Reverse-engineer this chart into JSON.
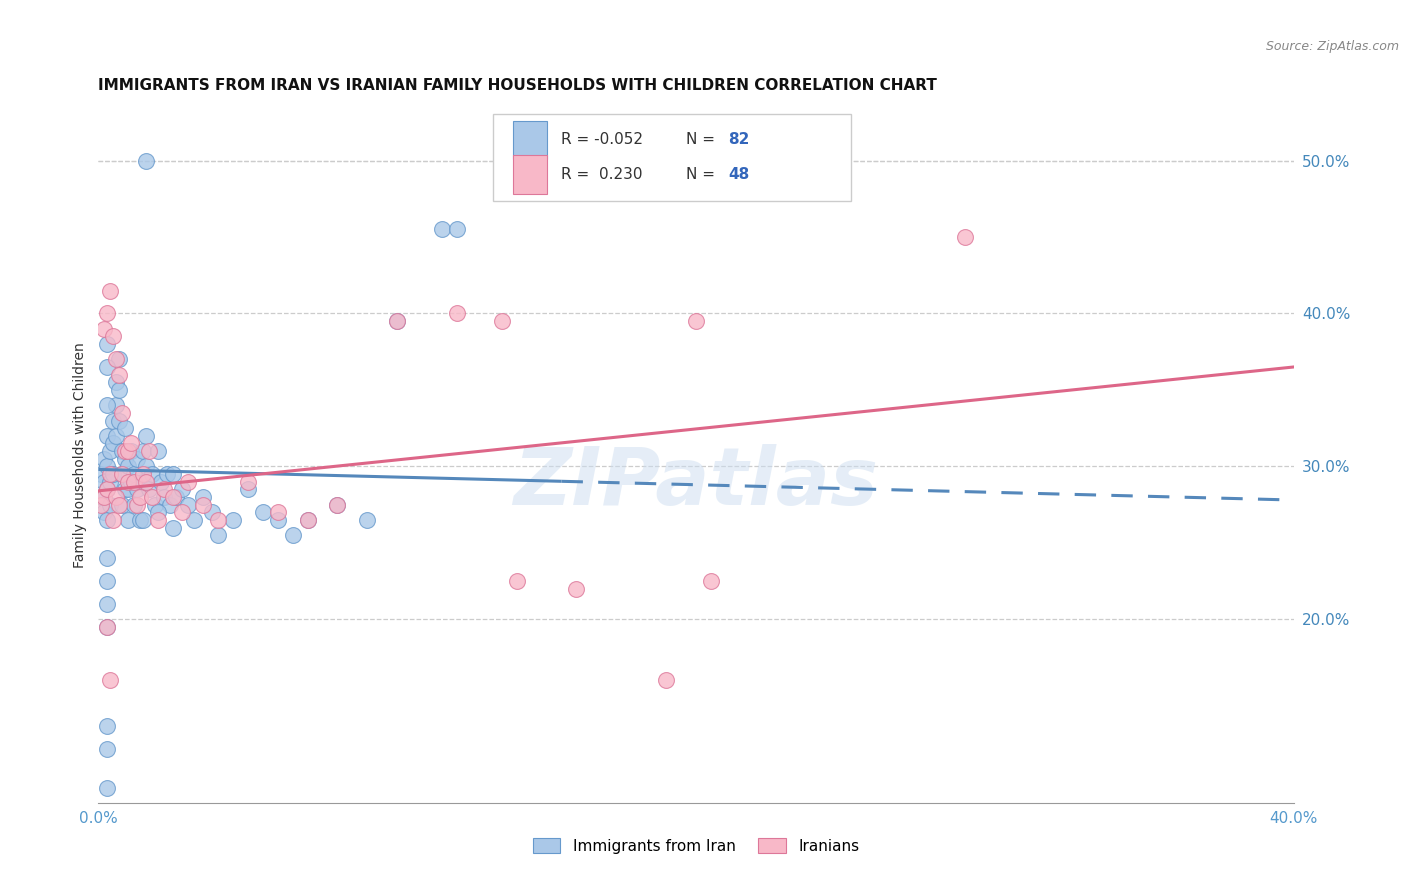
{
  "title": "IMMIGRANTS FROM IRAN VS IRANIAN FAMILY HOUSEHOLDS WITH CHILDREN CORRELATION CHART",
  "source": "Source: ZipAtlas.com",
  "ylabel": "Family Households with Children",
  "xlim": [
    0.0,
    0.4
  ],
  "ylim": [
    0.08,
    0.535
  ],
  "right_yticks": [
    0.2,
    0.3,
    0.4,
    0.5
  ],
  "right_yticklabels": [
    "20.0%",
    "30.0%",
    "40.0%",
    "50.0%"
  ],
  "color_blue_fill": "#aac8e8",
  "color_blue_edge": "#6699cc",
  "color_pink_fill": "#f8b8c8",
  "color_pink_edge": "#dd7799",
  "color_blue_line": "#5588bb",
  "color_pink_line": "#dd6688",
  "background_color": "#ffffff",
  "watermark": "ZIPatlas",
  "blue_line_start_y": 0.298,
  "blue_line_end_y": 0.278,
  "blue_line_solid_end_x": 0.155,
  "pink_line_start_y": 0.284,
  "pink_line_end_y": 0.365,
  "blue_points_x": [
    0.001,
    0.001,
    0.002,
    0.002,
    0.002,
    0.003,
    0.003,
    0.003,
    0.003,
    0.004,
    0.004,
    0.004,
    0.005,
    0.005,
    0.005,
    0.006,
    0.006,
    0.006,
    0.007,
    0.007,
    0.007,
    0.008,
    0.008,
    0.008,
    0.009,
    0.009,
    0.009,
    0.01,
    0.01,
    0.01,
    0.011,
    0.011,
    0.012,
    0.012,
    0.013,
    0.013,
    0.014,
    0.015,
    0.015,
    0.016,
    0.016,
    0.017,
    0.018,
    0.019,
    0.02,
    0.021,
    0.022,
    0.023,
    0.024,
    0.025,
    0.026,
    0.028,
    0.03,
    0.032,
    0.035,
    0.038,
    0.04,
    0.045,
    0.05,
    0.055,
    0.06,
    0.065,
    0.07,
    0.08,
    0.09,
    0.1,
    0.115,
    0.12,
    0.015,
    0.02,
    0.025,
    0.003,
    0.003,
    0.003,
    0.016,
    0.003,
    0.003,
    0.003,
    0.003,
    0.003,
    0.003,
    0.003
  ],
  "blue_points_y": [
    0.295,
    0.28,
    0.305,
    0.29,
    0.27,
    0.32,
    0.3,
    0.285,
    0.265,
    0.31,
    0.29,
    0.275,
    0.33,
    0.315,
    0.295,
    0.355,
    0.34,
    0.32,
    0.37,
    0.35,
    0.33,
    0.31,
    0.295,
    0.275,
    0.325,
    0.305,
    0.285,
    0.3,
    0.285,
    0.265,
    0.31,
    0.29,
    0.295,
    0.275,
    0.305,
    0.285,
    0.265,
    0.31,
    0.29,
    0.3,
    0.32,
    0.285,
    0.295,
    0.275,
    0.31,
    0.29,
    0.28,
    0.295,
    0.275,
    0.295,
    0.28,
    0.285,
    0.275,
    0.265,
    0.28,
    0.27,
    0.255,
    0.265,
    0.285,
    0.27,
    0.265,
    0.255,
    0.265,
    0.275,
    0.265,
    0.395,
    0.455,
    0.455,
    0.265,
    0.27,
    0.26,
    0.38,
    0.365,
    0.34,
    0.5,
    0.24,
    0.225,
    0.21,
    0.195,
    0.13,
    0.115,
    0.09
  ],
  "pink_points_x": [
    0.001,
    0.002,
    0.002,
    0.003,
    0.003,
    0.004,
    0.004,
    0.005,
    0.005,
    0.006,
    0.006,
    0.007,
    0.007,
    0.008,
    0.008,
    0.009,
    0.01,
    0.01,
    0.011,
    0.012,
    0.013,
    0.014,
    0.015,
    0.016,
    0.017,
    0.018,
    0.02,
    0.022,
    0.025,
    0.028,
    0.03,
    0.035,
    0.04,
    0.05,
    0.06,
    0.07,
    0.08,
    0.1,
    0.12,
    0.14,
    0.16,
    0.19,
    0.205,
    0.29,
    0.135,
    0.2,
    0.003,
    0.004
  ],
  "pink_points_y": [
    0.275,
    0.39,
    0.28,
    0.4,
    0.285,
    0.415,
    0.295,
    0.385,
    0.265,
    0.37,
    0.28,
    0.36,
    0.275,
    0.295,
    0.335,
    0.31,
    0.29,
    0.31,
    0.315,
    0.29,
    0.275,
    0.28,
    0.295,
    0.29,
    0.31,
    0.28,
    0.265,
    0.285,
    0.28,
    0.27,
    0.29,
    0.275,
    0.265,
    0.29,
    0.27,
    0.265,
    0.275,
    0.395,
    0.4,
    0.225,
    0.22,
    0.16,
    0.225,
    0.45,
    0.395,
    0.395,
    0.195,
    0.16
  ]
}
